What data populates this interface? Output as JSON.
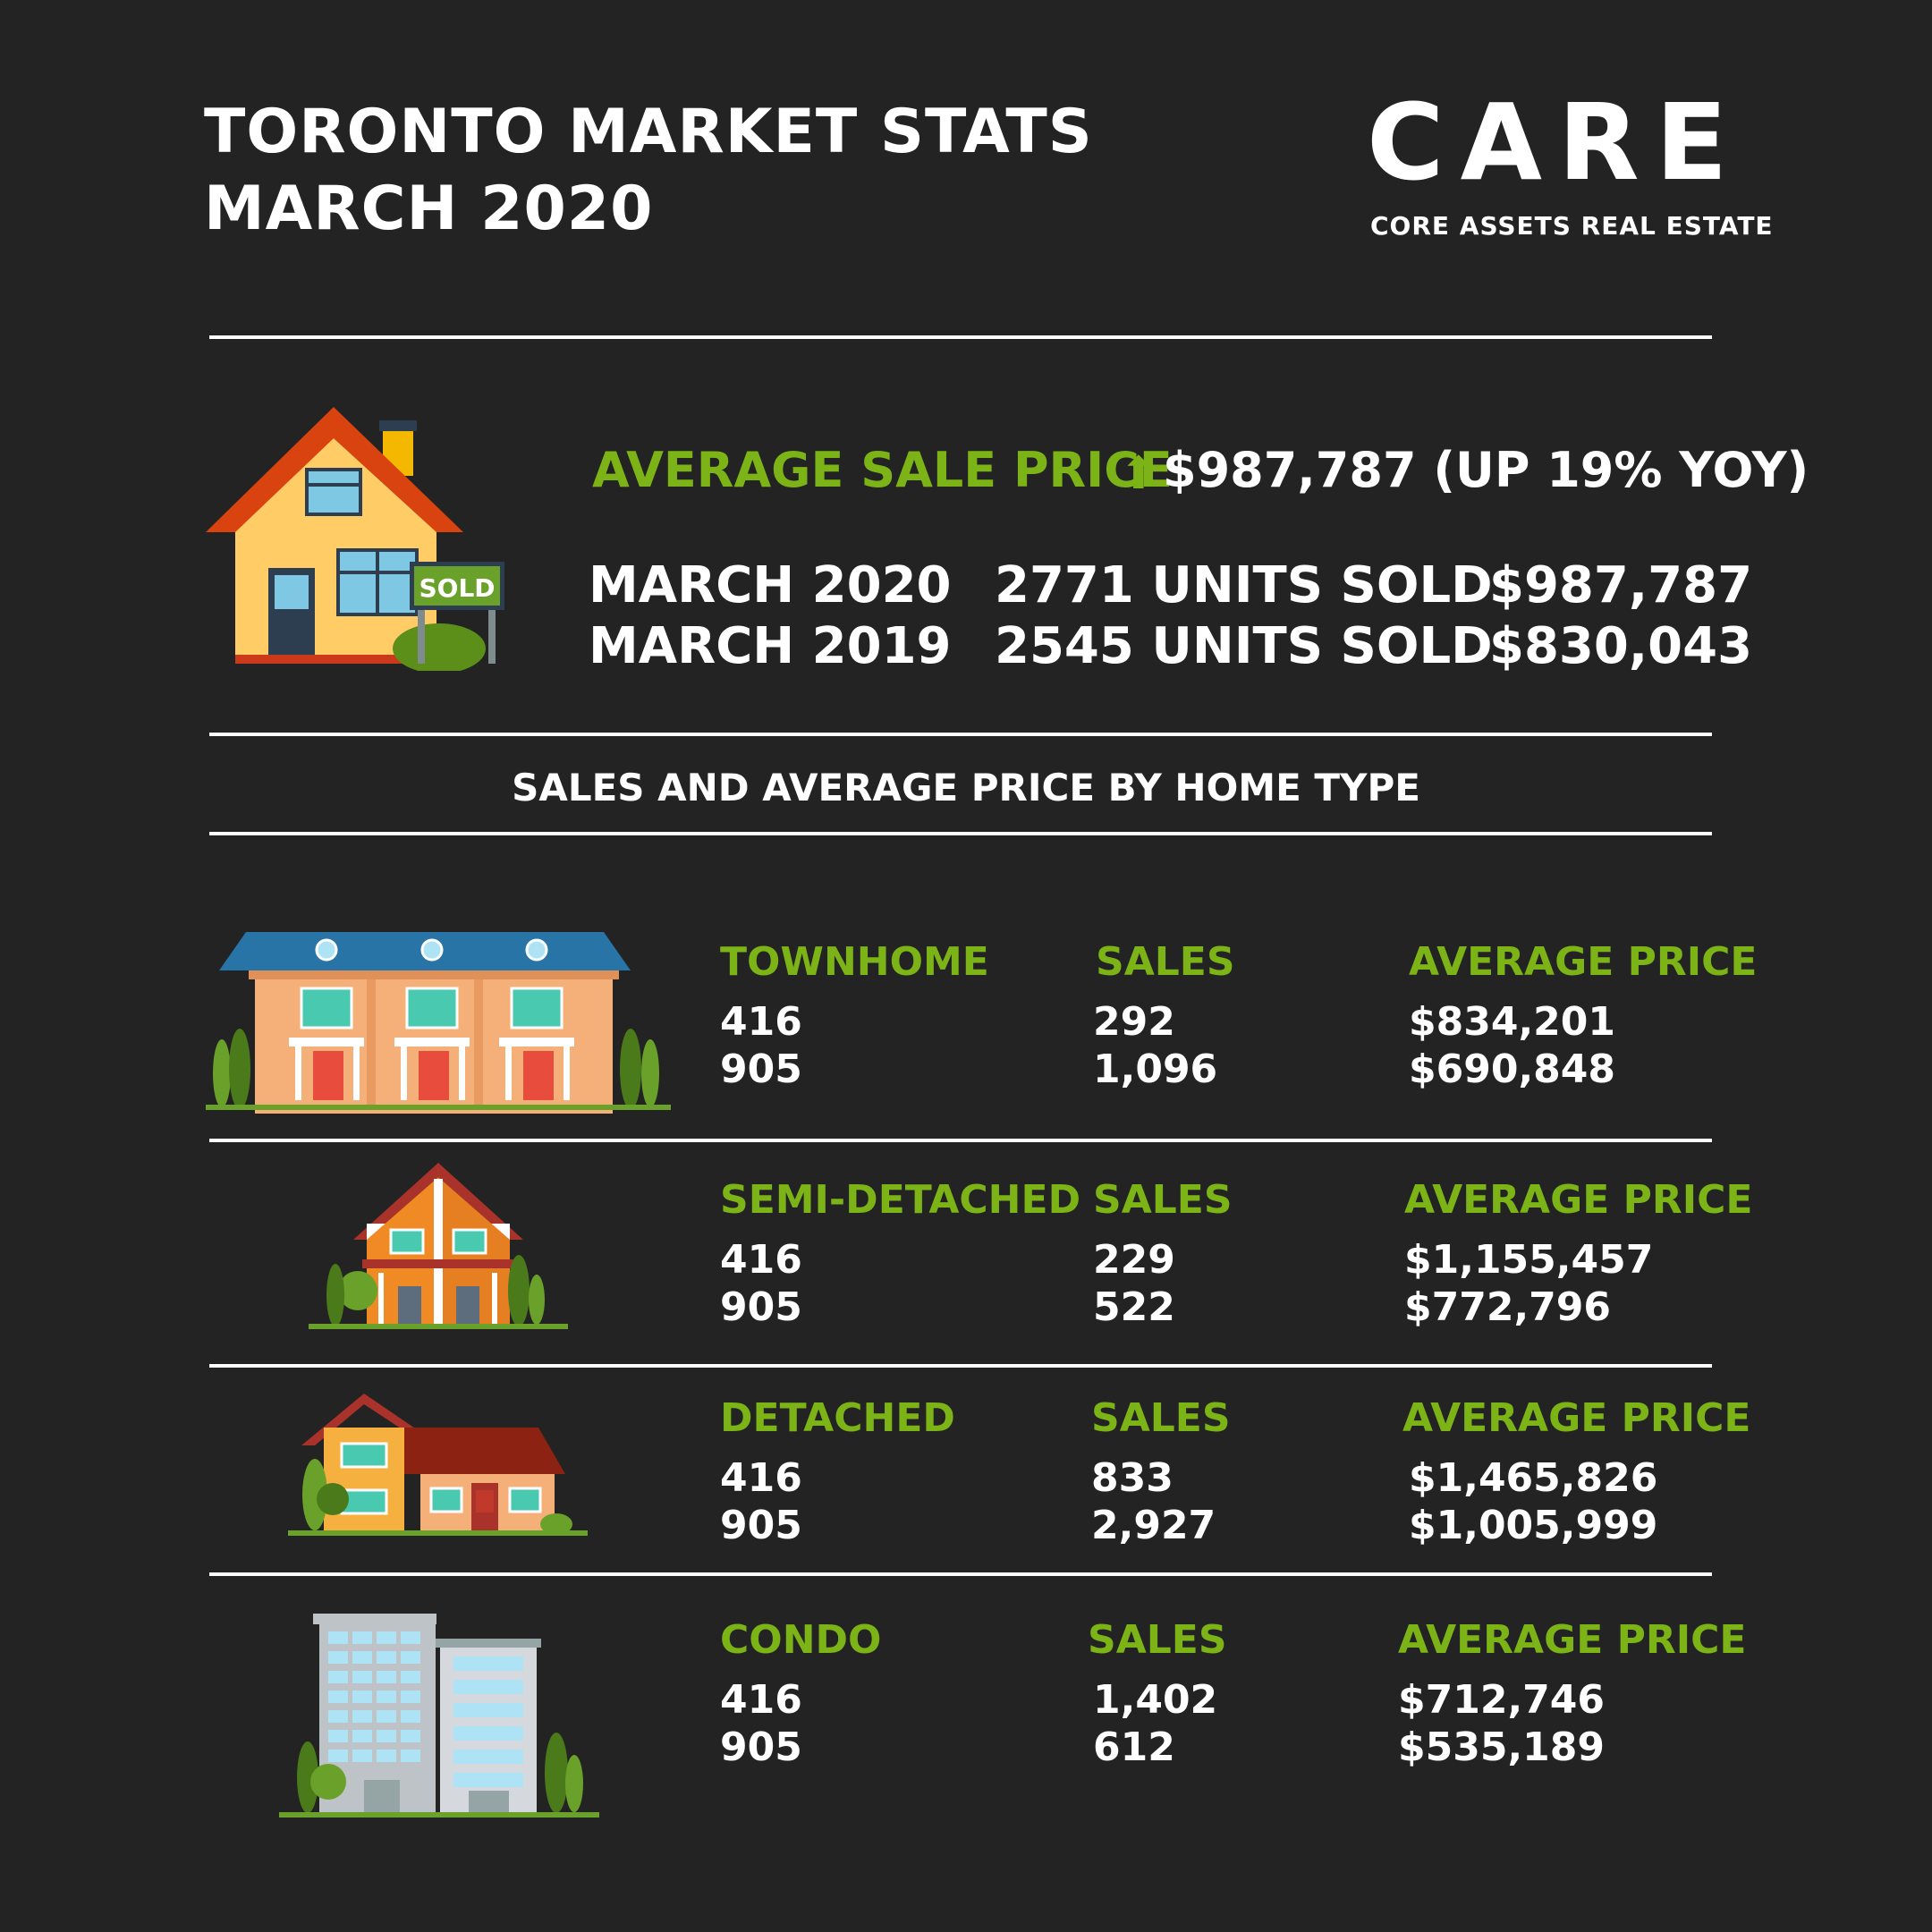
{
  "header": {
    "title_line1": "TORONTO MARKET STATS",
    "title_line2": "MARCH 2020",
    "logo_word": "CARE",
    "logo_subtitle": "CORE ASSETS REAL ESTATE"
  },
  "summary": {
    "avg_label": "AVERAGE SALE PRICE",
    "avg_icon": "up-arrow-icon",
    "avg_value": "$987,787 (UP 19% YOY)",
    "sign_text": "SOLD",
    "years": [
      {
        "period": "MARCH 2020",
        "units": "2771 UNITS SOLD",
        "price": "$987,787"
      },
      {
        "period": "MARCH 2019",
        "units": "2545 UNITS SOLD",
        "price": "$830,043"
      }
    ]
  },
  "section_heading": "SALES AND AVERAGE PRICE BY HOME TYPE",
  "home_types": [
    {
      "name": "TOWNHOME",
      "sales_label": "SALES",
      "price_label": "AVERAGE PRICE",
      "rows": [
        {
          "region": "416",
          "sales": "292",
          "price": "$834,201"
        },
        {
          "region": "905",
          "sales": "1,096",
          "price": "$690,848"
        }
      ]
    },
    {
      "name": "SEMI-DETACHED",
      "sales_label": "SALES",
      "price_label": "AVERAGE PRICE",
      "rows": [
        {
          "region": "416",
          "sales": "229",
          "price": "$1,155,457"
        },
        {
          "region": "905",
          "sales": "522",
          "price": "$772,796"
        }
      ]
    },
    {
      "name": "DETACHED",
      "sales_label": "SALES",
      "price_label": "AVERAGE PRICE",
      "rows": [
        {
          "region": "416",
          "sales": "833",
          "price": "$1,465,826"
        },
        {
          "region": "905",
          "sales": "2,927",
          "price": "$1,005,999"
        }
      ]
    },
    {
      "name": "CONDO",
      "sales_label": "SALES",
      "price_label": "AVERAGE PRICE",
      "rows": [
        {
          "region": "416",
          "sales": "1,402",
          "price": "$712,746"
        },
        {
          "region": "905",
          "sales": "612",
          "price": "$535,189"
        }
      ]
    }
  ],
  "colors": {
    "background": "#232323",
    "accent_green": "#7cb316",
    "text": "#ffffff"
  }
}
